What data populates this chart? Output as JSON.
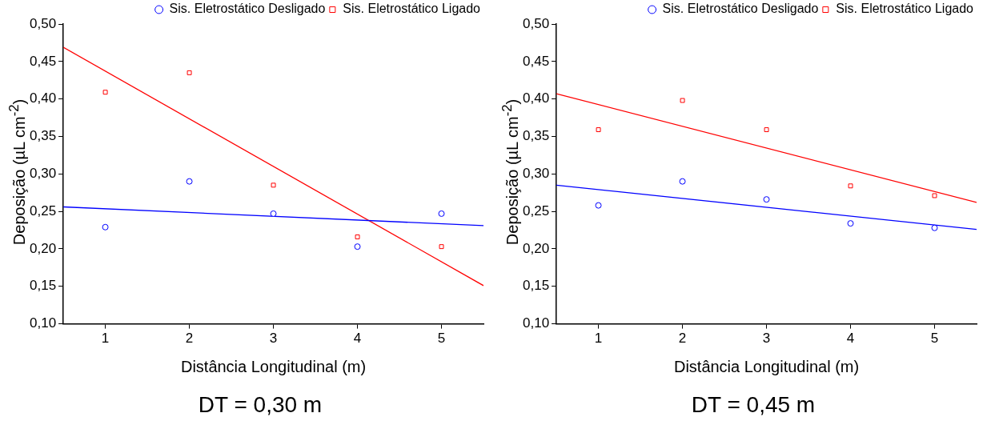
{
  "chart_data": [
    {
      "type": "scatter",
      "xlabel": "Distância Longitudinal (m)",
      "ylabel": "Deposição (µL cm$^{-2}$)",
      "xlim": [
        0.5,
        5.5
      ],
      "xticks": [
        1,
        2,
        3,
        4,
        5
      ],
      "ylim": [
        0.1,
        0.5
      ],
      "yticks": [
        {
          "value": 0.1,
          "label": "0,10"
        },
        {
          "value": 0.15,
          "label": "0,15"
        },
        {
          "value": 0.2,
          "label": "0,20"
        },
        {
          "value": 0.25,
          "label": "0,25"
        },
        {
          "value": 0.3,
          "label": "0,30"
        },
        {
          "value": 0.35,
          "label": "0,35"
        },
        {
          "value": 0.4,
          "label": "0,40"
        },
        {
          "value": 0.45,
          "label": "0,45"
        },
        {
          "value": 0.5,
          "label": "0,50"
        }
      ],
      "grid": false,
      "legend": "top right",
      "series": [
        {
          "name": "Sis. Eletrostático Desligado",
          "type": "scatter",
          "marker": "circle",
          "color": "#0000ff",
          "x": [
            1,
            2,
            3,
            4,
            5
          ],
          "values": [
            0.229,
            0.29,
            0.247,
            0.203,
            0.247
          ]
        },
        {
          "name": "Sis. Eletrostático Ligado",
          "type": "scatter",
          "marker": "square",
          "color": "#ff0000",
          "x": [
            1,
            2,
            3,
            4,
            5
          ],
          "values": [
            0.409,
            0.435,
            0.285,
            0.216,
            0.203
          ]
        },
        {
          "type": "line",
          "marker": "none",
          "color": "#0000ff",
          "x": [
            0.5,
            5.5
          ],
          "values": [
            0.256,
            0.231
          ]
        },
        {
          "type": "line",
          "marker": "none",
          "color": "#ff0000",
          "x": [
            0.5,
            5.5
          ],
          "values": [
            0.469,
            0.151
          ]
        }
      ],
      "annotations": [
        "DT = 0,30 m"
      ]
    },
    {
      "type": "scatter",
      "xlabel": "Distância Longitudinal (m)",
      "ylabel": "Deposição (µL cm$^{-2}$)",
      "xlim": [
        0.5,
        5.5
      ],
      "xticks": [
        1,
        2,
        3,
        4,
        5
      ],
      "ylim": [
        0.1,
        0.5
      ],
      "yticks": [
        {
          "value": 0.1,
          "label": "0,10"
        },
        {
          "value": 0.15,
          "label": "0,15"
        },
        {
          "value": 0.2,
          "label": "0,20"
        },
        {
          "value": 0.25,
          "label": "0,25"
        },
        {
          "value": 0.3,
          "label": "0,30"
        },
        {
          "value": 0.35,
          "label": "0,35"
        },
        {
          "value": 0.4,
          "label": "0,40"
        },
        {
          "value": 0.45,
          "label": "0,45"
        },
        {
          "value": 0.5,
          "label": "0,50"
        }
      ],
      "grid": false,
      "legend": "top right",
      "series": [
        {
          "name": "Sis. Eletrostático Desligado",
          "type": "scatter",
          "marker": "circle",
          "color": "#0000ff",
          "x": [
            1,
            2,
            3,
            4,
            5
          ],
          "values": [
            0.258,
            0.29,
            0.266,
            0.234,
            0.228
          ]
        },
        {
          "name": "Sis. Eletrostático Ligado",
          "type": "scatter",
          "marker": "square",
          "color": "#ff0000",
          "x": [
            1,
            2,
            3,
            4,
            5
          ],
          "values": [
            0.359,
            0.398,
            0.359,
            0.284,
            0.271
          ]
        },
        {
          "type": "line",
          "marker": "none",
          "color": "#0000ff",
          "x": [
            0.5,
            5.5
          ],
          "values": [
            0.285,
            0.226
          ]
        },
        {
          "type": "line",
          "marker": "none",
          "color": "#ff0000",
          "x": [
            0.5,
            5.5
          ],
          "values": [
            0.407,
            0.262
          ]
        }
      ],
      "annotations": [
        "DT = 0,45 m"
      ]
    }
  ]
}
